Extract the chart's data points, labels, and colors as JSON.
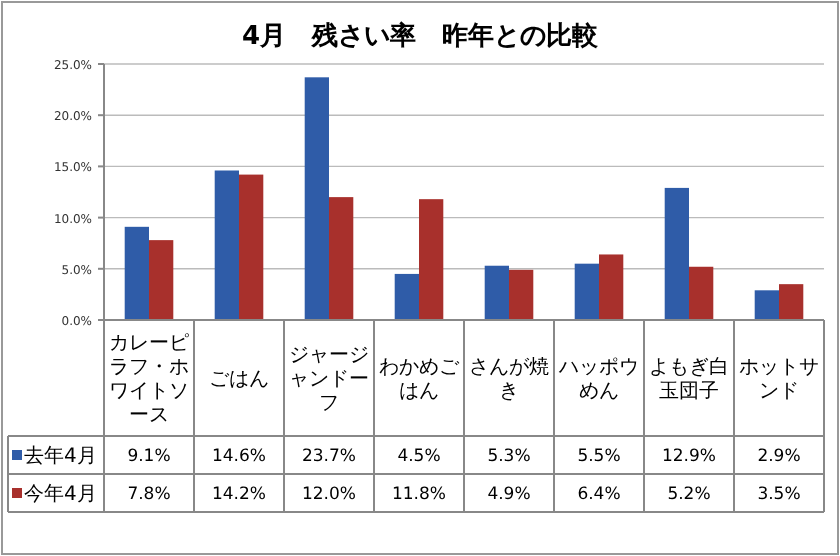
{
  "chart_data": {
    "type": "bar",
    "title": "4月　残さい率　昨年との比較",
    "categories": [
      "カレーピラフ・ホワイトソース",
      "ごはん",
      "ジャージャンドーフ",
      "わかめごはん",
      "さんが焼き",
      "ハッポウめん",
      "よもぎ白玉団子",
      "ホットサンド"
    ],
    "series": [
      {
        "name": "去年4月",
        "color": "#2f5ca8",
        "values": [
          9.1,
          14.6,
          23.7,
          4.5,
          5.3,
          5.5,
          12.9,
          2.9
        ],
        "value_labels": [
          "9.1%",
          "14.6%",
          "23.7%",
          "4.5%",
          "5.3%",
          "5.5%",
          "12.9%",
          "2.9%"
        ]
      },
      {
        "name": "今年4月",
        "color": "#a8302c",
        "values": [
          7.8,
          14.2,
          12.0,
          11.8,
          4.9,
          6.4,
          5.2,
          3.5
        ],
        "value_labels": [
          "7.8%",
          "14.2%",
          "12.0%",
          "11.8%",
          "4.9%",
          "6.4%",
          "5.2%",
          "3.5%"
        ]
      }
    ],
    "ylim": [
      0,
      25
    ],
    "yticks": [
      {
        "value": 0,
        "label": "0.0%"
      },
      {
        "value": 5,
        "label": "5.0%"
      },
      {
        "value": 10,
        "label": "10.0%"
      },
      {
        "value": 15,
        "label": "15.0%"
      },
      {
        "value": 20,
        "label": "20.0%"
      },
      {
        "value": 25,
        "label": "25.0%"
      }
    ],
    "grid": "y",
    "legend": "bottom"
  }
}
